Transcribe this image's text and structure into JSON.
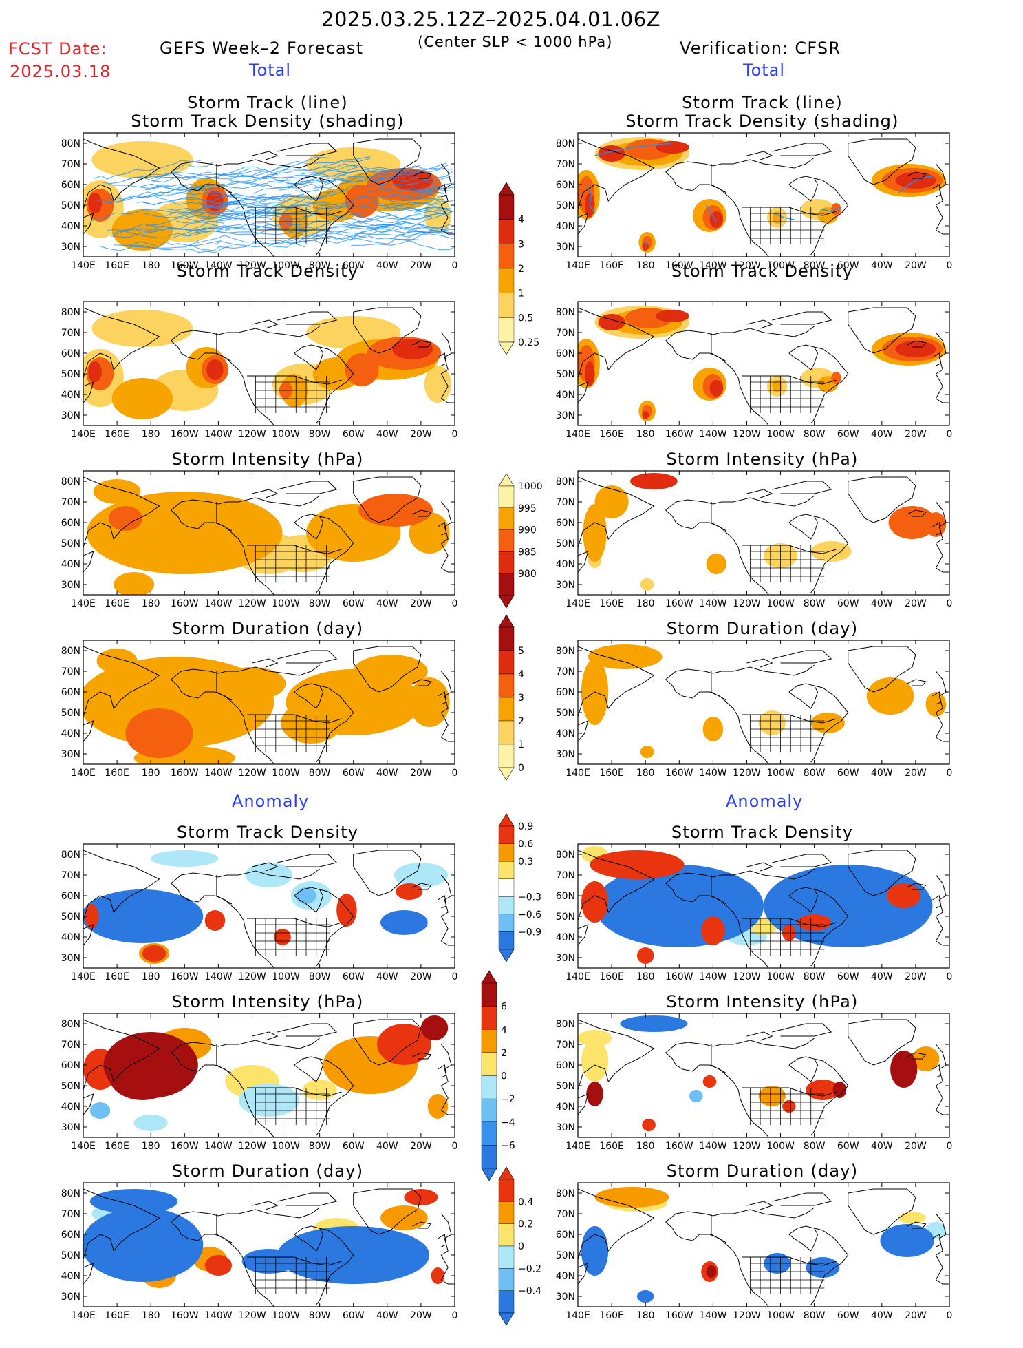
{
  "header": {
    "title": "2025.03.25.12Z–2025.04.01.06Z",
    "subtitle": "(Center SLP < 1000 hPa)",
    "fcst_label": "FCST Date:",
    "fcst_date": "2025.03.18",
    "left_title": "GEFS Week–2 Forecast",
    "right_title": "Verification: CFSR",
    "total_label": "Total",
    "anomaly_label": "Anomaly"
  },
  "colors": {
    "title_red": "#e8202a",
    "label_blue": "#2a3cff",
    "land_outline": "#000000",
    "track_line": "#1e90ff"
  },
  "axes": {
    "lat_labels": [
      "80N",
      "70N",
      "60N",
      "50N",
      "40N",
      "30N"
    ],
    "lon_labels": [
      "140E",
      "160E",
      "180",
      "160W",
      "140W",
      "120W",
      "100W",
      "80W",
      "60W",
      "40W",
      "20W",
      "0"
    ]
  },
  "panels": [
    {
      "id": "fc-track",
      "title_lines": [
        "Storm Track (line)",
        "Storm Track Density (shading)"
      ],
      "scale": "pos",
      "pattern": "fc-density",
      "tracks": true
    },
    {
      "id": "obs-track",
      "title_lines": [
        "Storm Track (line)",
        "Storm Track Density (shading)"
      ],
      "scale": "pos",
      "pattern": "obs-density",
      "tracks": true
    },
    {
      "id": "fc-density",
      "title_lines": [
        "Storm Track Density"
      ],
      "scale": "pos",
      "pattern": "fc-density"
    },
    {
      "id": "obs-density",
      "title_lines": [
        "Storm Track Density"
      ],
      "scale": "pos",
      "pattern": "obs-density"
    },
    {
      "id": "fc-intensity",
      "title_lines": [
        "Storm Intensity (hPa)"
      ],
      "scale": "pos",
      "pattern": "fc-intensity"
    },
    {
      "id": "obs-intensity",
      "title_lines": [
        "Storm Intensity (hPa)"
      ],
      "scale": "pos",
      "pattern": "obs-intensity"
    },
    {
      "id": "fc-duration",
      "title_lines": [
        "Storm Duration (day)"
      ],
      "scale": "pos",
      "pattern": "fc-duration"
    },
    {
      "id": "obs-duration",
      "title_lines": [
        "Storm Duration (day)"
      ],
      "scale": "pos",
      "pattern": "obs-duration"
    },
    {
      "id": "fc-density-anom",
      "title_lines": [
        "Storm Track Density"
      ],
      "scale": "anom",
      "pattern": "fc-density-anom"
    },
    {
      "id": "obs-density-anom",
      "title_lines": [
        "Storm Track Density"
      ],
      "scale": "anom",
      "pattern": "obs-density-anom"
    },
    {
      "id": "fc-intensity-anom",
      "title_lines": [
        "Storm Intensity (hPa)"
      ],
      "scale": "anom",
      "pattern": "fc-intensity-anom"
    },
    {
      "id": "obs-intensity-anom",
      "title_lines": [
        "Storm Intensity (hPa)"
      ],
      "scale": "anom",
      "pattern": "obs-intensity-anom"
    },
    {
      "id": "fc-duration-anom",
      "title_lines": [
        "Storm Duration (day)"
      ],
      "scale": "anom",
      "pattern": "fc-duration-anom"
    },
    {
      "id": "obs-duration-anom",
      "title_lines": [
        "Storm Duration (day)"
      ],
      "scale": "anom",
      "pattern": "obs-duration-anom"
    }
  ],
  "colorbars": [
    {
      "id": "cb-density",
      "labels": [
        "4",
        "3",
        "2",
        "1",
        "0.5",
        "0.25"
      ],
      "colors": [
        "#a50f0f",
        "#e02d10",
        "#f46010",
        "#f7a300",
        "#fcd35e",
        "#fdf3a6"
      ],
      "type": "pos"
    },
    {
      "id": "cb-intensity",
      "labels": [
        "1000",
        "995",
        "990",
        "985",
        "980"
      ],
      "colors": [
        "#fdf3a6",
        "#f7a300",
        "#f46010",
        "#e02d10",
        "#a50f0f"
      ],
      "type": "pos-rev"
    },
    {
      "id": "cb-duration",
      "labels": [
        "5",
        "4",
        "3",
        "2",
        "1",
        "0"
      ],
      "colors": [
        "#a50f0f",
        "#e02d10",
        "#f46010",
        "#f7a300",
        "#fcd35e",
        "#fdf3a6"
      ],
      "type": "pos"
    },
    {
      "id": "cb-density-anom",
      "labels": [
        "0.9",
        "0.6",
        "0.3",
        "−0.3",
        "−0.6",
        "−0.9"
      ],
      "colors": [
        "#e83510",
        "#f79a00",
        "#fce36a",
        "#ffffff",
        "#aee8f8",
        "#6ec0f4",
        "#2a78e0"
      ],
      "type": "anom"
    },
    {
      "id": "cb-intensity-anom",
      "labels": [
        "6",
        "4",
        "2",
        "0",
        "−2",
        "−4",
        "−6"
      ],
      "colors": [
        "#a50f0f",
        "#e83510",
        "#f79a00",
        "#fce36a",
        "#aee8f8",
        "#6ec0f4",
        "#3a90ea",
        "#2a78e0"
      ],
      "type": "anom8"
    },
    {
      "id": "cb-duration-anom",
      "labels": [
        "0.4",
        "0.2",
        "0",
        "−0.2",
        "−0.4"
      ],
      "colors": [
        "#e83510",
        "#f79a00",
        "#fce36a",
        "#aee8f8",
        "#6ec0f4",
        "#2a78e0"
      ],
      "type": "anom6"
    }
  ]
}
